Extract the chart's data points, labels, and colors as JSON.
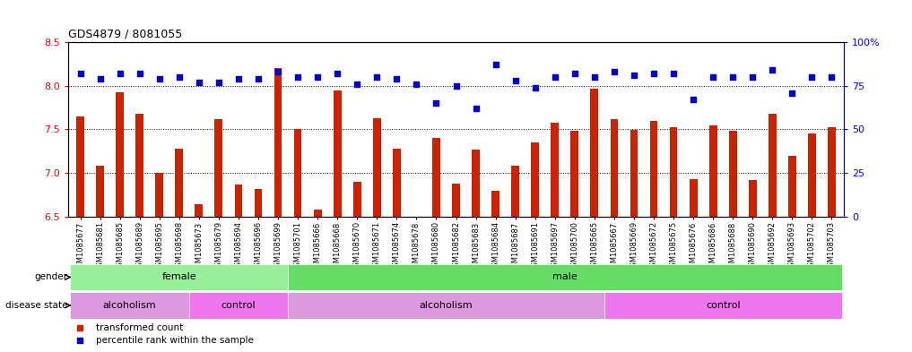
{
  "title": "GDS4879 / 8081055",
  "samples": [
    "GSM1085677",
    "GSM1085681",
    "GSM1085685",
    "GSM1085689",
    "GSM1085695",
    "GSM1085698",
    "GSM1085673",
    "GSM1085679",
    "GSM1085694",
    "GSM1085696",
    "GSM1085699",
    "GSM1085701",
    "GSM1085666",
    "GSM1085668",
    "GSM1085670",
    "GSM1085671",
    "GSM1085674",
    "GSM1085678",
    "GSM1085680",
    "GSM1085682",
    "GSM1085683",
    "GSM1085684",
    "GSM1085687",
    "GSM1085691",
    "GSM1085697",
    "GSM1085700",
    "GSM1085665",
    "GSM1085667",
    "GSM1085669",
    "GSM1085672",
    "GSM1085675",
    "GSM1085676",
    "GSM1085686",
    "GSM1085688",
    "GSM1085690",
    "GSM1085692",
    "GSM1085693",
    "GSM1085702",
    "GSM1085703"
  ],
  "bar_values": [
    7.65,
    7.08,
    7.93,
    7.68,
    7.0,
    7.28,
    6.64,
    7.62,
    6.87,
    6.82,
    8.2,
    7.5,
    6.58,
    7.95,
    6.9,
    7.63,
    7.28,
    6.5,
    7.4,
    6.88,
    7.27,
    6.8,
    7.08,
    7.35,
    7.58,
    7.48,
    7.97,
    7.62,
    7.49,
    7.6,
    7.52,
    6.93,
    7.55,
    7.48,
    6.92,
    7.68,
    7.2,
    7.45,
    7.52
  ],
  "percentile_values": [
    82,
    79,
    82,
    82,
    79,
    80,
    77,
    77,
    79,
    79,
    83,
    80,
    80,
    82,
    76,
    80,
    79,
    76,
    65,
    75,
    62,
    87,
    78,
    74,
    80,
    82,
    80,
    83,
    81,
    82,
    82,
    67,
    80,
    80,
    80,
    84,
    71,
    80,
    80
  ],
  "ylim_left": [
    6.5,
    8.5
  ],
  "yticks_left": [
    6.5,
    7.0,
    7.5,
    8.0,
    8.5
  ],
  "ylim_right": [
    0,
    100
  ],
  "yticks_right": [
    0,
    25,
    50,
    75,
    100
  ],
  "bar_color": "#cc2200",
  "scatter_color": "#0000cc",
  "gender_blocks": [
    {
      "label": "female",
      "start": 0,
      "end": 11,
      "color": "#99ee99"
    },
    {
      "label": "male",
      "start": 11,
      "end": 39,
      "color": "#66dd66"
    }
  ],
  "disease_blocks": [
    {
      "label": "alcoholism",
      "start": 0,
      "end": 6,
      "color": "#dd99dd"
    },
    {
      "label": "control",
      "start": 6,
      "end": 11,
      "color": "#ee77ee"
    },
    {
      "label": "alcoholism",
      "start": 11,
      "end": 27,
      "color": "#dd99dd"
    },
    {
      "label": "control",
      "start": 27,
      "end": 39,
      "color": "#ee77ee"
    }
  ]
}
